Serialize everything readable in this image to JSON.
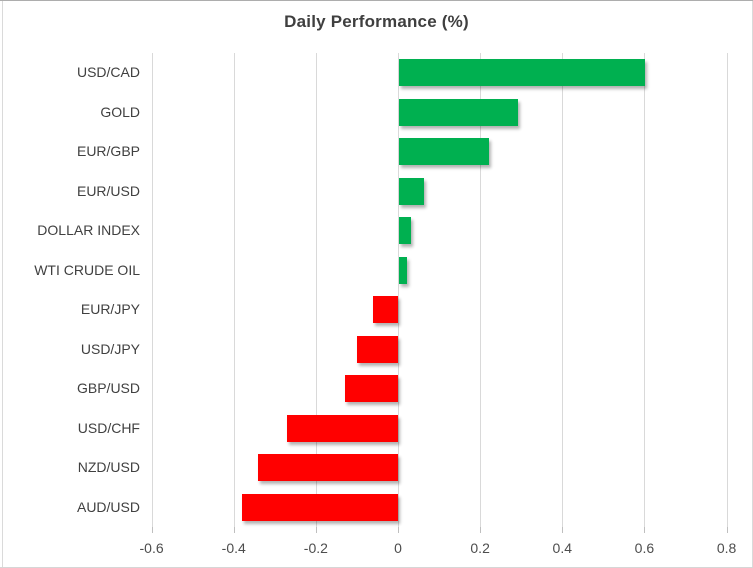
{
  "chart_data": {
    "type": "bar",
    "orientation": "horizontal",
    "title": "Daily Performance (%)",
    "categories": [
      "USD/CAD",
      "GOLD",
      "EUR/GBP",
      "EUR/USD",
      "DOLLAR INDEX",
      "WTI CRUDE OIL",
      "EUR/JPY",
      "USD/JPY",
      "GBP/USD",
      "USD/CHF",
      "NZD/USD",
      "AUD/USD"
    ],
    "values": [
      0.6,
      0.29,
      0.22,
      0.06,
      0.03,
      0.02,
      -0.06,
      -0.1,
      -0.13,
      -0.27,
      -0.34,
      -0.38
    ],
    "xlabel": "",
    "ylabel": "",
    "xlim": [
      -0.6,
      0.8
    ],
    "x_ticks": [
      {
        "value": -0.6,
        "label": "-0.6"
      },
      {
        "value": -0.4,
        "label": "-0.4"
      },
      {
        "value": -0.2,
        "label": "-0.2"
      },
      {
        "value": 0,
        "label": "0"
      },
      {
        "value": 0.2,
        "label": "0.2"
      },
      {
        "value": 0.4,
        "label": "0.4"
      },
      {
        "value": 0.6,
        "label": "0.6"
      },
      {
        "value": 0.8,
        "label": "0.8"
      }
    ],
    "grid": true,
    "legend": "none",
    "colors": {
      "positive_bar": "#00B050",
      "negative_bar": "#FF0000",
      "gridline": "#D9D9D9",
      "title_text": "#3F3F3F",
      "category_text": "#404040",
      "tick_text": "#4D4D4D"
    }
  }
}
